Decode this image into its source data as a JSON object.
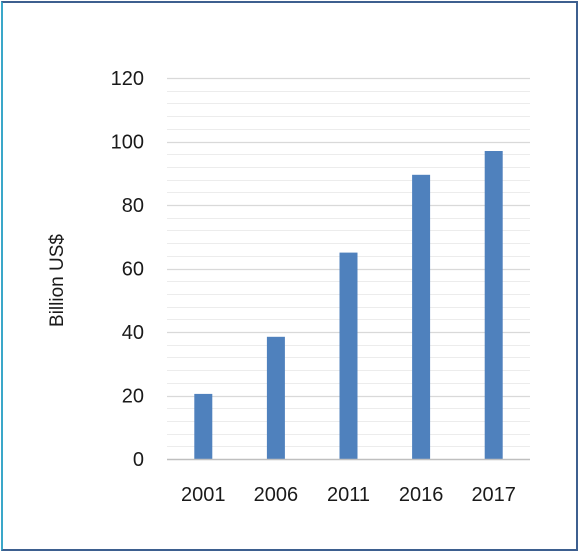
{
  "chart_data": {
    "type": "bar",
    "title": "",
    "xlabel": "",
    "ylabel": "Billion US$",
    "categories": [
      "2001",
      "2006",
      "2011",
      "2016",
      "2017"
    ],
    "values": [
      20.5,
      38.5,
      65,
      89.5,
      97
    ],
    "ylim": [
      0,
      120
    ],
    "y_ticks": [
      "0",
      "20",
      "40",
      "60",
      "80",
      "100",
      "120"
    ],
    "y_tick_values": [
      0,
      20,
      40,
      60,
      80,
      100,
      120
    ],
    "minor_grid_step": 4,
    "grid": true,
    "legend": "none",
    "bar_color": "#4f81bd",
    "major_grid_color": "#d9d9d9",
    "minor_grid_color": "#ececec"
  }
}
